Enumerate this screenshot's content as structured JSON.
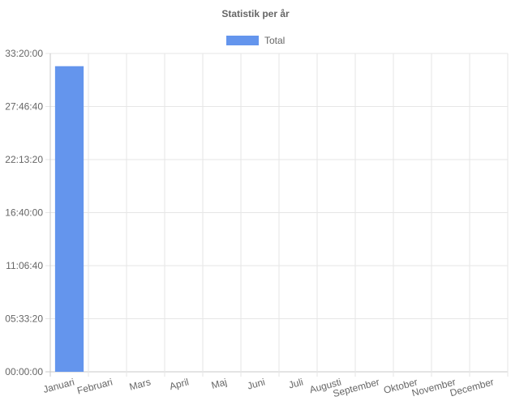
{
  "chart_data": {
    "type": "bar",
    "title": "Statistik per år",
    "legend": {
      "position": "top-center",
      "entries": [
        "Total"
      ]
    },
    "categories": [
      "Januari",
      "Februari",
      "Mars",
      "April",
      "Maj",
      "Juni",
      "Juli",
      "Augusti",
      "September",
      "Oktober",
      "November",
      "December"
    ],
    "series": [
      {
        "name": "Total",
        "color": "#6495ed",
        "values_seconds": [
          115200,
          0,
          0,
          0,
          0,
          0,
          0,
          0,
          0,
          0,
          0,
          0
        ]
      }
    ],
    "ylim_seconds": [
      0,
      120000
    ],
    "y_ticks": [
      "00:00:00",
      "05:33:20",
      "11:06:40",
      "16:40:00",
      "22:13:20",
      "27:46:40",
      "33:20:00"
    ],
    "grid": true,
    "xlabel": "",
    "ylabel": ""
  }
}
